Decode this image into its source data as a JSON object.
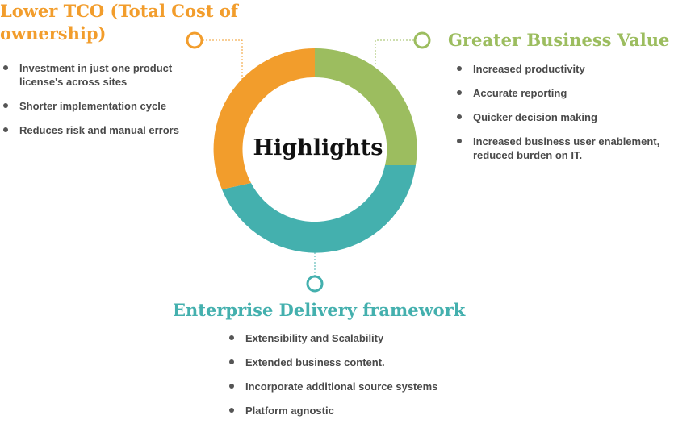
{
  "center": {
    "title": "Highlights"
  },
  "colors": {
    "tco": "#f29d2c",
    "value": "#9cbd5f",
    "delivery": "#44b0ae"
  },
  "sections": {
    "tco": {
      "title": "Lower TCO (Total Cost of ownership)",
      "items": [
        "Investment in just one product license's across sites",
        "Shorter implementation cycle",
        "Reduces risk and manual errors"
      ]
    },
    "value": {
      "title": "Greater Business Value",
      "items": [
        "Increased productivity",
        "Accurate reporting",
        "Quicker decision making",
        "Increased business user enablement, reduced burden on IT."
      ]
    },
    "delivery": {
      "title": "Enterprise Delivery framework",
      "items": [
        "Extensibility and Scalability",
        "Extended business content.",
        "Incorporate additional source systems",
        "Platform agnostic"
      ]
    }
  }
}
